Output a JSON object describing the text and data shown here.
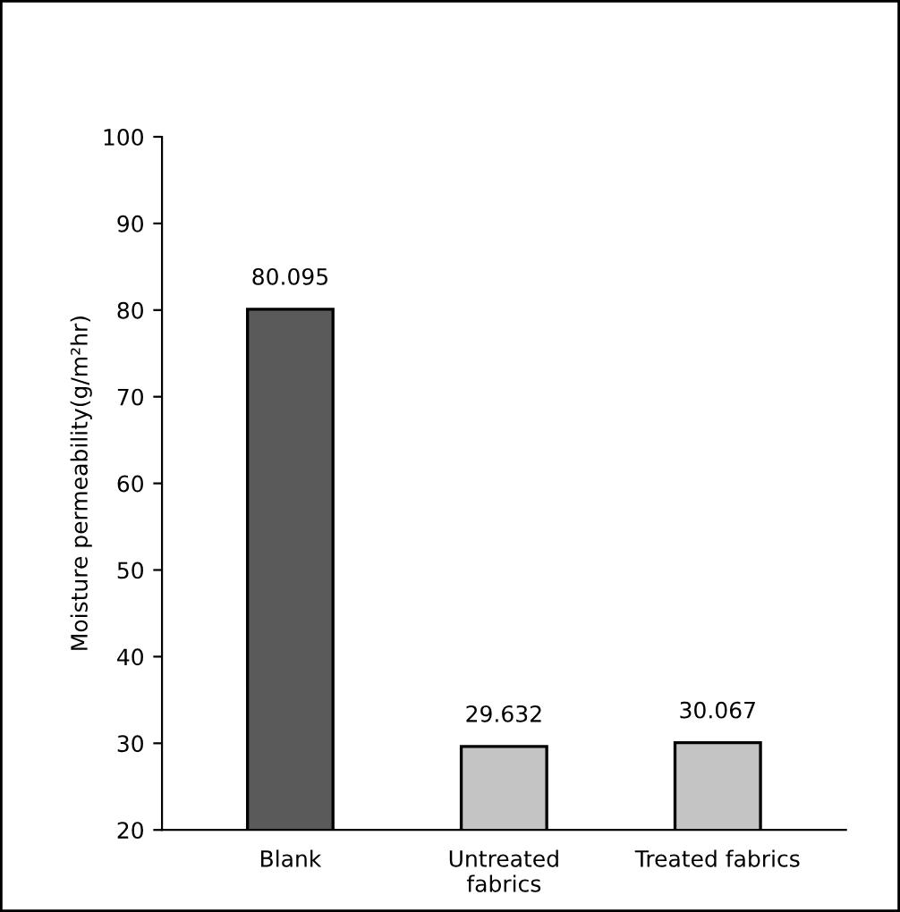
{
  "chart_data": {
    "type": "bar",
    "ylabel": "Moisture permeability(g/m²hr)",
    "categories": [
      "Blank",
      "Untreated\nfabrics",
      "Treated fabrics"
    ],
    "values": [
      80.095,
      29.632,
      30.067
    ],
    "colors": [
      "#5a5a5a",
      "#c4c4c4",
      "#c4c4c4"
    ],
    "value_labels": [
      "80.095",
      "29.632",
      "30.067"
    ],
    "ylim": [
      20,
      100
    ],
    "yticks": [
      20,
      30,
      40,
      50,
      60,
      70,
      80,
      90,
      100
    ],
    "grid": false,
    "legend": false
  }
}
